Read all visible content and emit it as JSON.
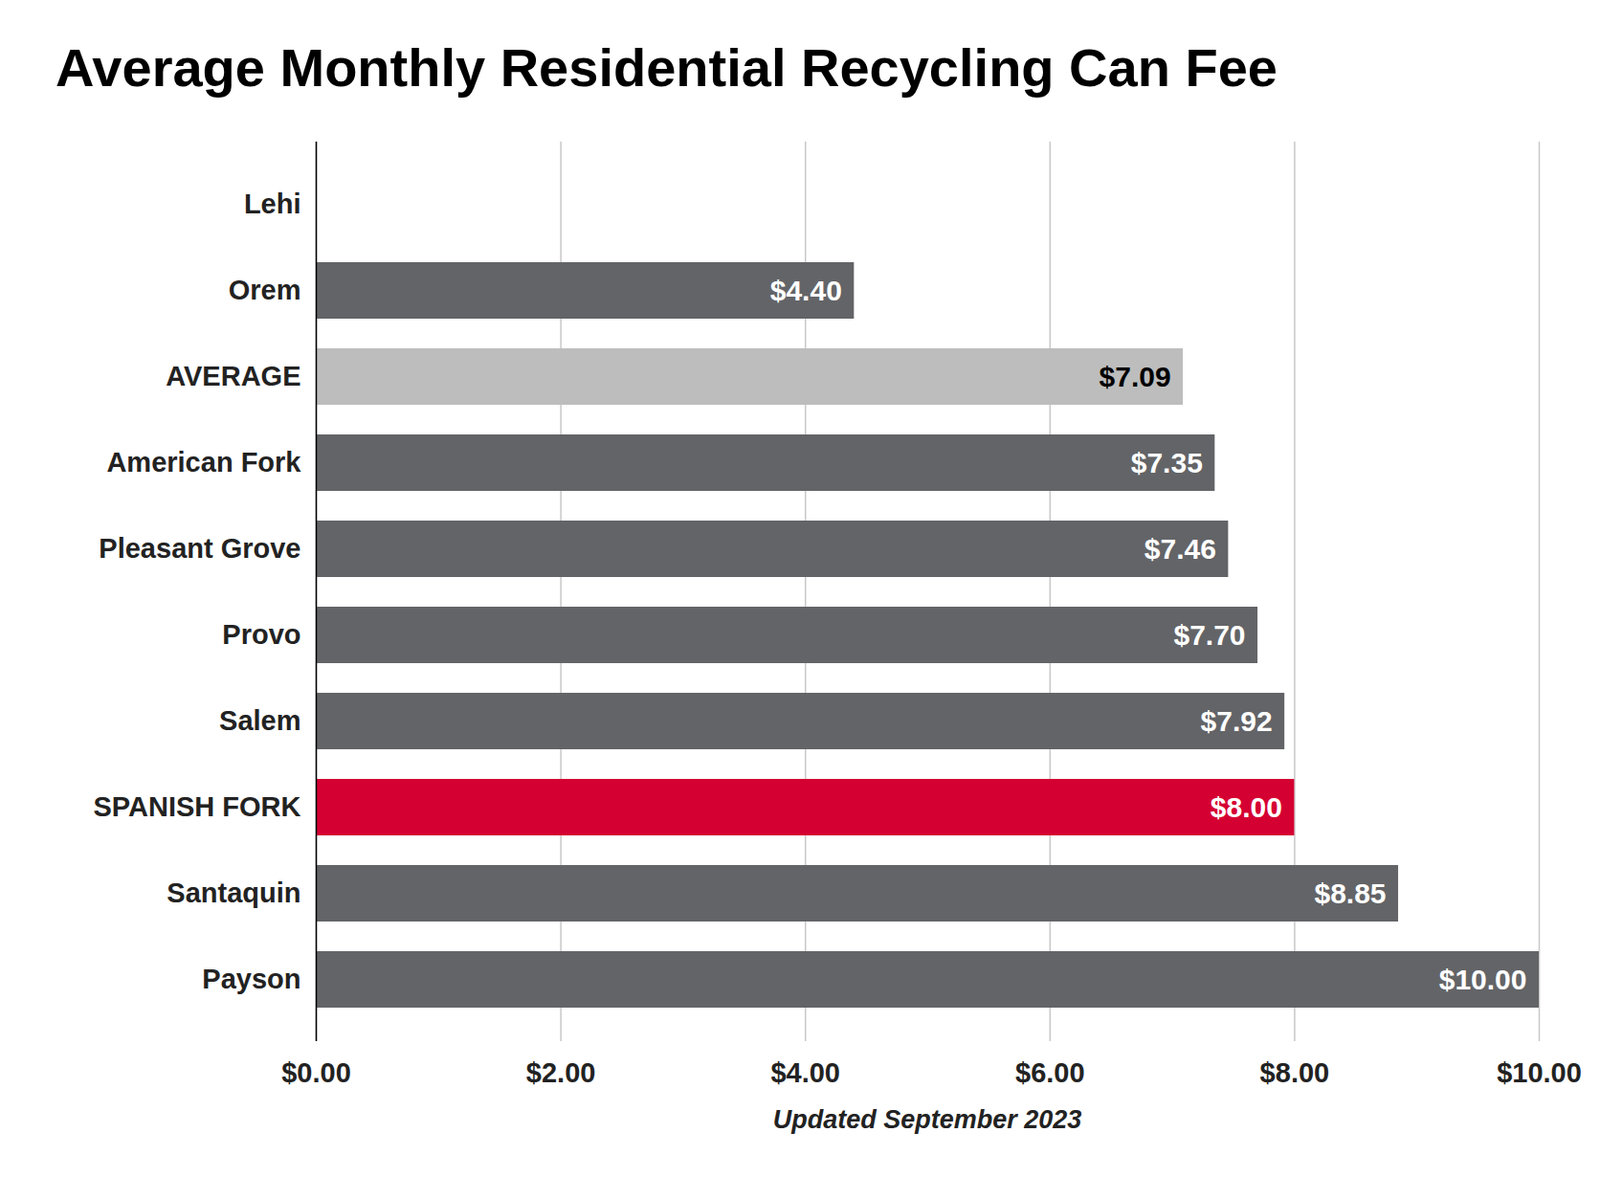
{
  "chart_data": {
    "type": "bar",
    "orientation": "horizontal",
    "title": "Average Monthly Residential Recycling Can Fee",
    "xlabel": "Updated September 2023",
    "categories": [
      "Lehi",
      "Orem",
      "AVERAGE",
      "American Fork",
      "Pleasant Grove",
      "Provo",
      "Salem",
      "SPANISH FORK",
      "Santaquin",
      "Payson"
    ],
    "values": [
      null,
      4.4,
      7.09,
      7.35,
      7.46,
      7.7,
      7.92,
      8.0,
      8.85,
      10.0
    ],
    "value_labels": [
      null,
      "$4.40",
      "$7.09",
      "$7.35",
      "$7.46",
      "$7.70",
      "$7.92",
      "$8.00",
      "$8.85",
      "$10.00"
    ],
    "colors": [
      "#636467",
      "#636467",
      "#bdbdbd",
      "#636467",
      "#636467",
      "#636467",
      "#636467",
      "#d50032",
      "#636467",
      "#636467"
    ],
    "data_labels": true,
    "grid": true,
    "xlim": [
      0,
      10
    ],
    "xticks": [
      {
        "value": 0,
        "label": "$0.00"
      },
      {
        "value": 2,
        "label": "$2.00"
      },
      {
        "value": 4,
        "label": "$4.00"
      },
      {
        "value": 6,
        "label": "$6.00"
      },
      {
        "value": 8,
        "label": "$8.00"
      },
      {
        "value": 10,
        "label": "$10.00"
      }
    ]
  }
}
